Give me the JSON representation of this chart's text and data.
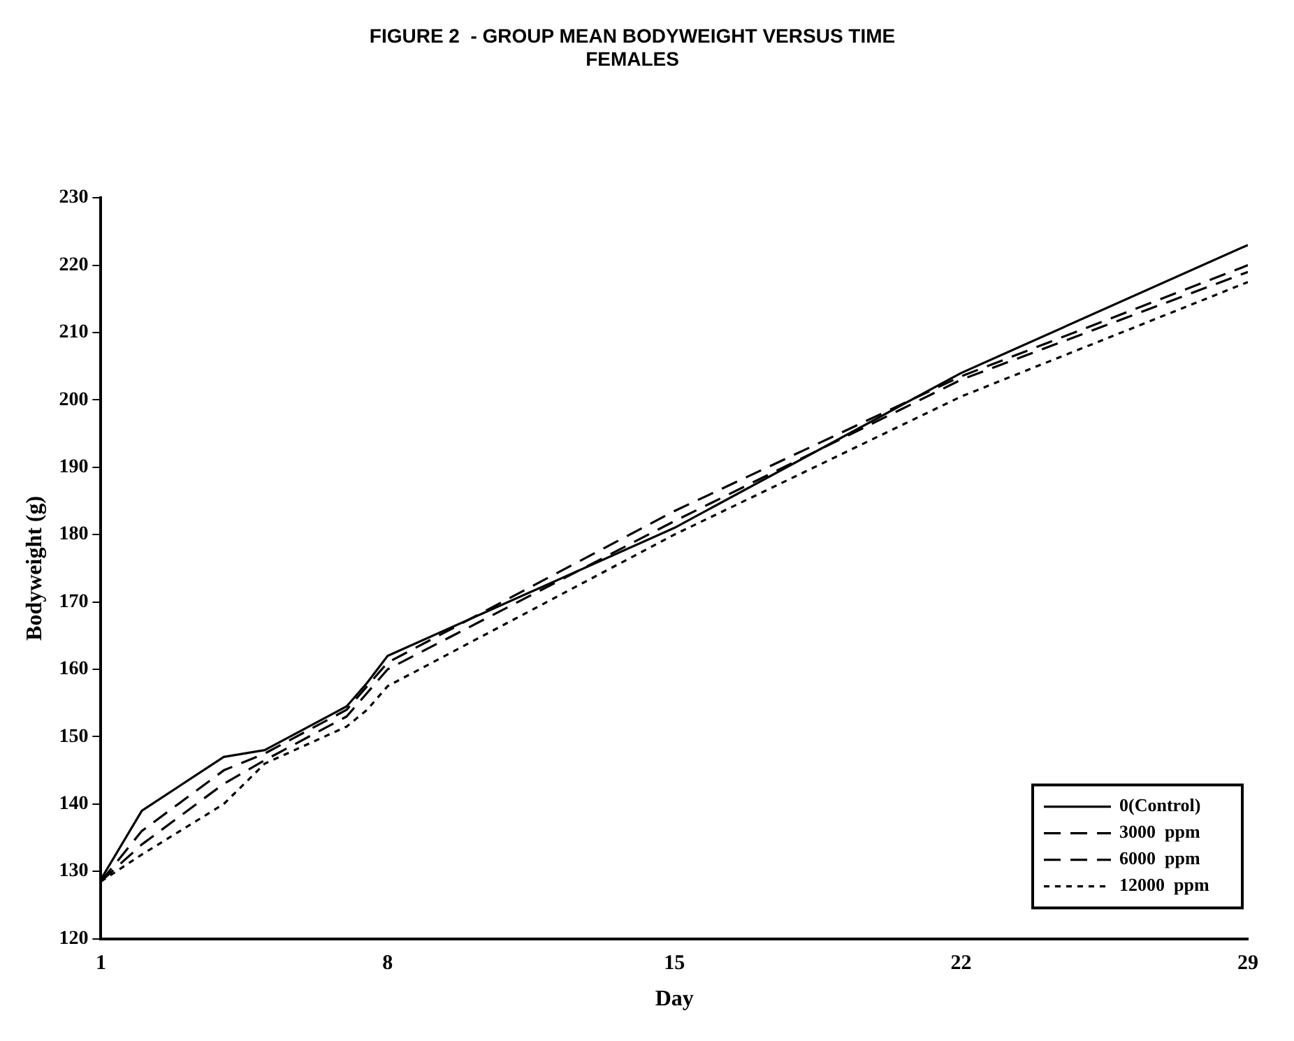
{
  "chart_data": {
    "type": "line",
    "title": "FIGURE 2  - GROUP MEAN BODYWEIGHT VERSUS TIME",
    "subtitle": "FEMALES",
    "xlabel": "Day",
    "ylabel": "Bodyweight (g)",
    "x": [
      1,
      2,
      4,
      5,
      7,
      7.5,
      8,
      15,
      22,
      29
    ],
    "series": [
      {
        "name": "0(Control)",
        "color": "#000000",
        "line_style": "solid",
        "values": [
          128.8,
          139,
          147,
          148,
          154.5,
          158,
          162,
          181,
          204,
          223
        ]
      },
      {
        "name": "3000  ppm",
        "color": "#000000",
        "line_style": "dashed",
        "values": [
          128.5,
          136,
          145,
          147.5,
          154,
          157.5,
          161,
          183.5,
          203.5,
          220
        ]
      },
      {
        "name": "6000  ppm",
        "color": "#000000",
        "line_style": "dashed",
        "values": [
          128.5,
          134,
          143,
          146.5,
          153,
          156.5,
          160,
          182,
          203,
          219
        ]
      },
      {
        "name": "12000  ppm",
        "color": "#000000",
        "line_style": "dotted",
        "values": [
          128.5,
          132.5,
          140,
          146,
          151.5,
          154,
          157.5,
          180,
          200.5,
          217.5
        ]
      }
    ],
    "xlim": [
      1,
      29
    ],
    "xticks": [
      1,
      8,
      15,
      22,
      29
    ],
    "ylim": [
      120,
      230
    ],
    "yticks": [
      120,
      130,
      140,
      150,
      160,
      170,
      180,
      190,
      200,
      210,
      220,
      230
    ],
    "grid": false,
    "legend": "bottom right",
    "marker": "none"
  }
}
